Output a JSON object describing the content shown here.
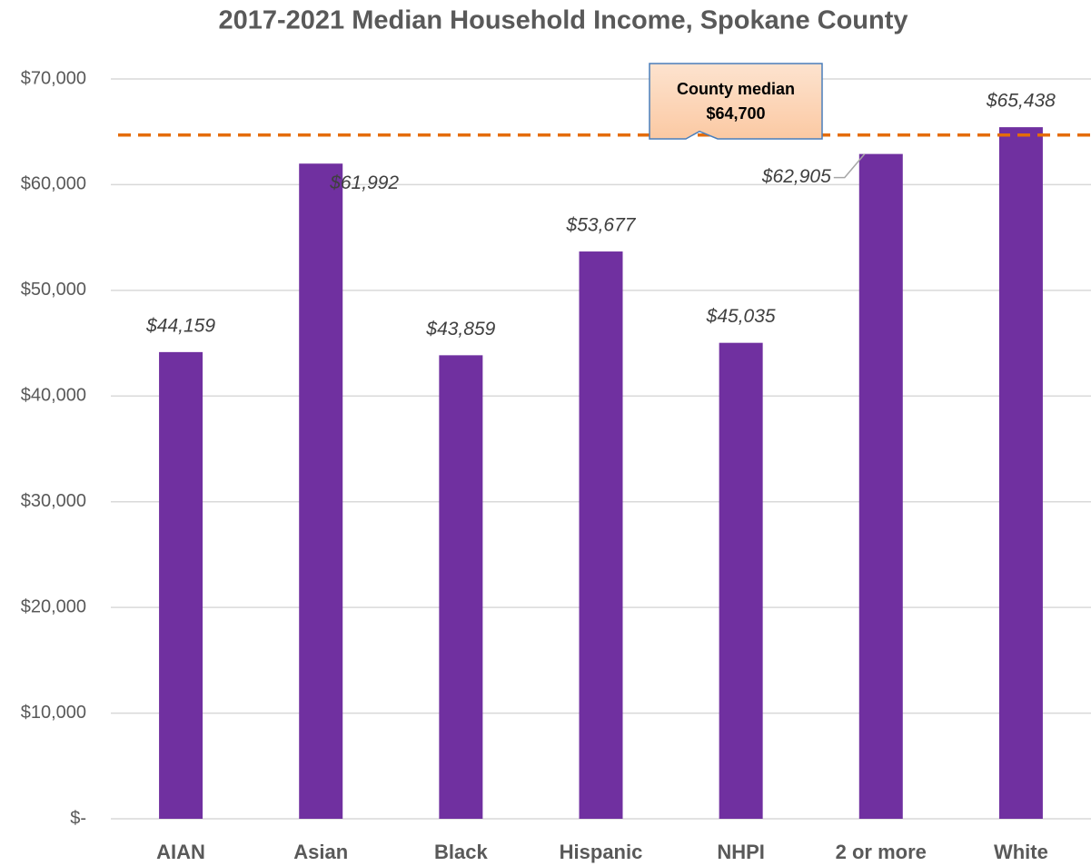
{
  "chart_data": {
    "type": "bar",
    "title": "2017-2021 Median Household Income, Spokane County",
    "categories": [
      "AIAN",
      "Asian",
      "Black",
      "Hispanic",
      "NHPI",
      "2 or more",
      "White"
    ],
    "values": [
      44159,
      61992,
      43859,
      53677,
      45035,
      62905,
      65438
    ],
    "value_labels": [
      "$44,159",
      "$61,992",
      "$43,859",
      "$53,677",
      "$45,035",
      "$62,905",
      "$65,438"
    ],
    "color": "#7030a0",
    "ylim": [
      0,
      70000
    ],
    "yticks": [
      {
        "value": 0,
        "label": "$-"
      },
      {
        "value": 10000,
        "label": "$10,000"
      },
      {
        "value": 20000,
        "label": "$20,000"
      },
      {
        "value": 30000,
        "label": "$30,000"
      },
      {
        "value": 40000,
        "label": "$40,000"
      },
      {
        "value": 50000,
        "label": "$50,000"
      },
      {
        "value": 60000,
        "label": "$60,000"
      },
      {
        "value": 70000,
        "label": "$70,000"
      }
    ],
    "grid": true,
    "reference_line": {
      "label": "County median",
      "value": 64700,
      "value_label": "$64,700",
      "color": "#e46c0a"
    }
  }
}
